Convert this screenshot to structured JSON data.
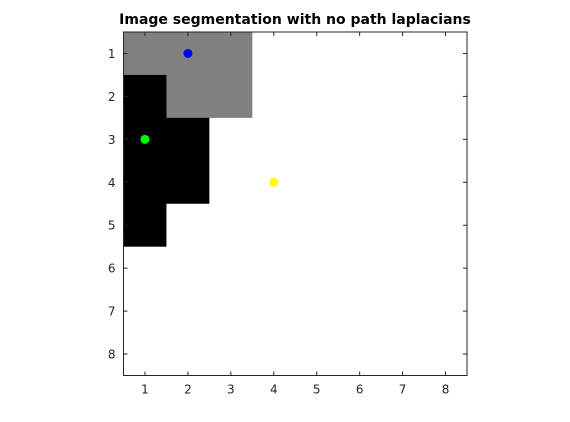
{
  "chart_data": {
    "type": "heatmap",
    "title": "Image segmentation with no path laplacians",
    "xlabel": "",
    "ylabel": "",
    "xlim": [
      0.5,
      8.5
    ],
    "ylim": [
      0.5,
      8.5
    ],
    "y_reversed": true,
    "grid": false,
    "x_ticks": [
      1,
      2,
      3,
      4,
      5,
      6,
      7,
      8
    ],
    "y_ticks": [
      1,
      2,
      3,
      4,
      5,
      6,
      7,
      8
    ],
    "colormap": {
      "0": "#000000",
      "1": "#808080",
      "2": "#ffffff"
    },
    "matrix": [
      [
        1,
        1,
        1,
        2,
        2,
        2,
        2,
        2
      ],
      [
        0,
        1,
        1,
        2,
        2,
        2,
        2,
        2
      ],
      [
        0,
        0,
        2,
        2,
        2,
        2,
        2,
        2
      ],
      [
        0,
        0,
        2,
        2,
        2,
        2,
        2,
        2
      ],
      [
        0,
        2,
        2,
        2,
        2,
        2,
        2,
        2
      ],
      [
        2,
        2,
        2,
        2,
        2,
        2,
        2,
        2
      ],
      [
        2,
        2,
        2,
        2,
        2,
        2,
        2,
        2
      ],
      [
        2,
        2,
        2,
        2,
        2,
        2,
        2,
        2
      ]
    ],
    "markers": [
      {
        "name": "blue",
        "x": 2,
        "y": 1,
        "color": "#0000ff"
      },
      {
        "name": "green",
        "x": 1,
        "y": 3,
        "color": "#00ff00"
      },
      {
        "name": "yellow",
        "x": 4,
        "y": 4,
        "color": "#ffff00"
      }
    ]
  }
}
